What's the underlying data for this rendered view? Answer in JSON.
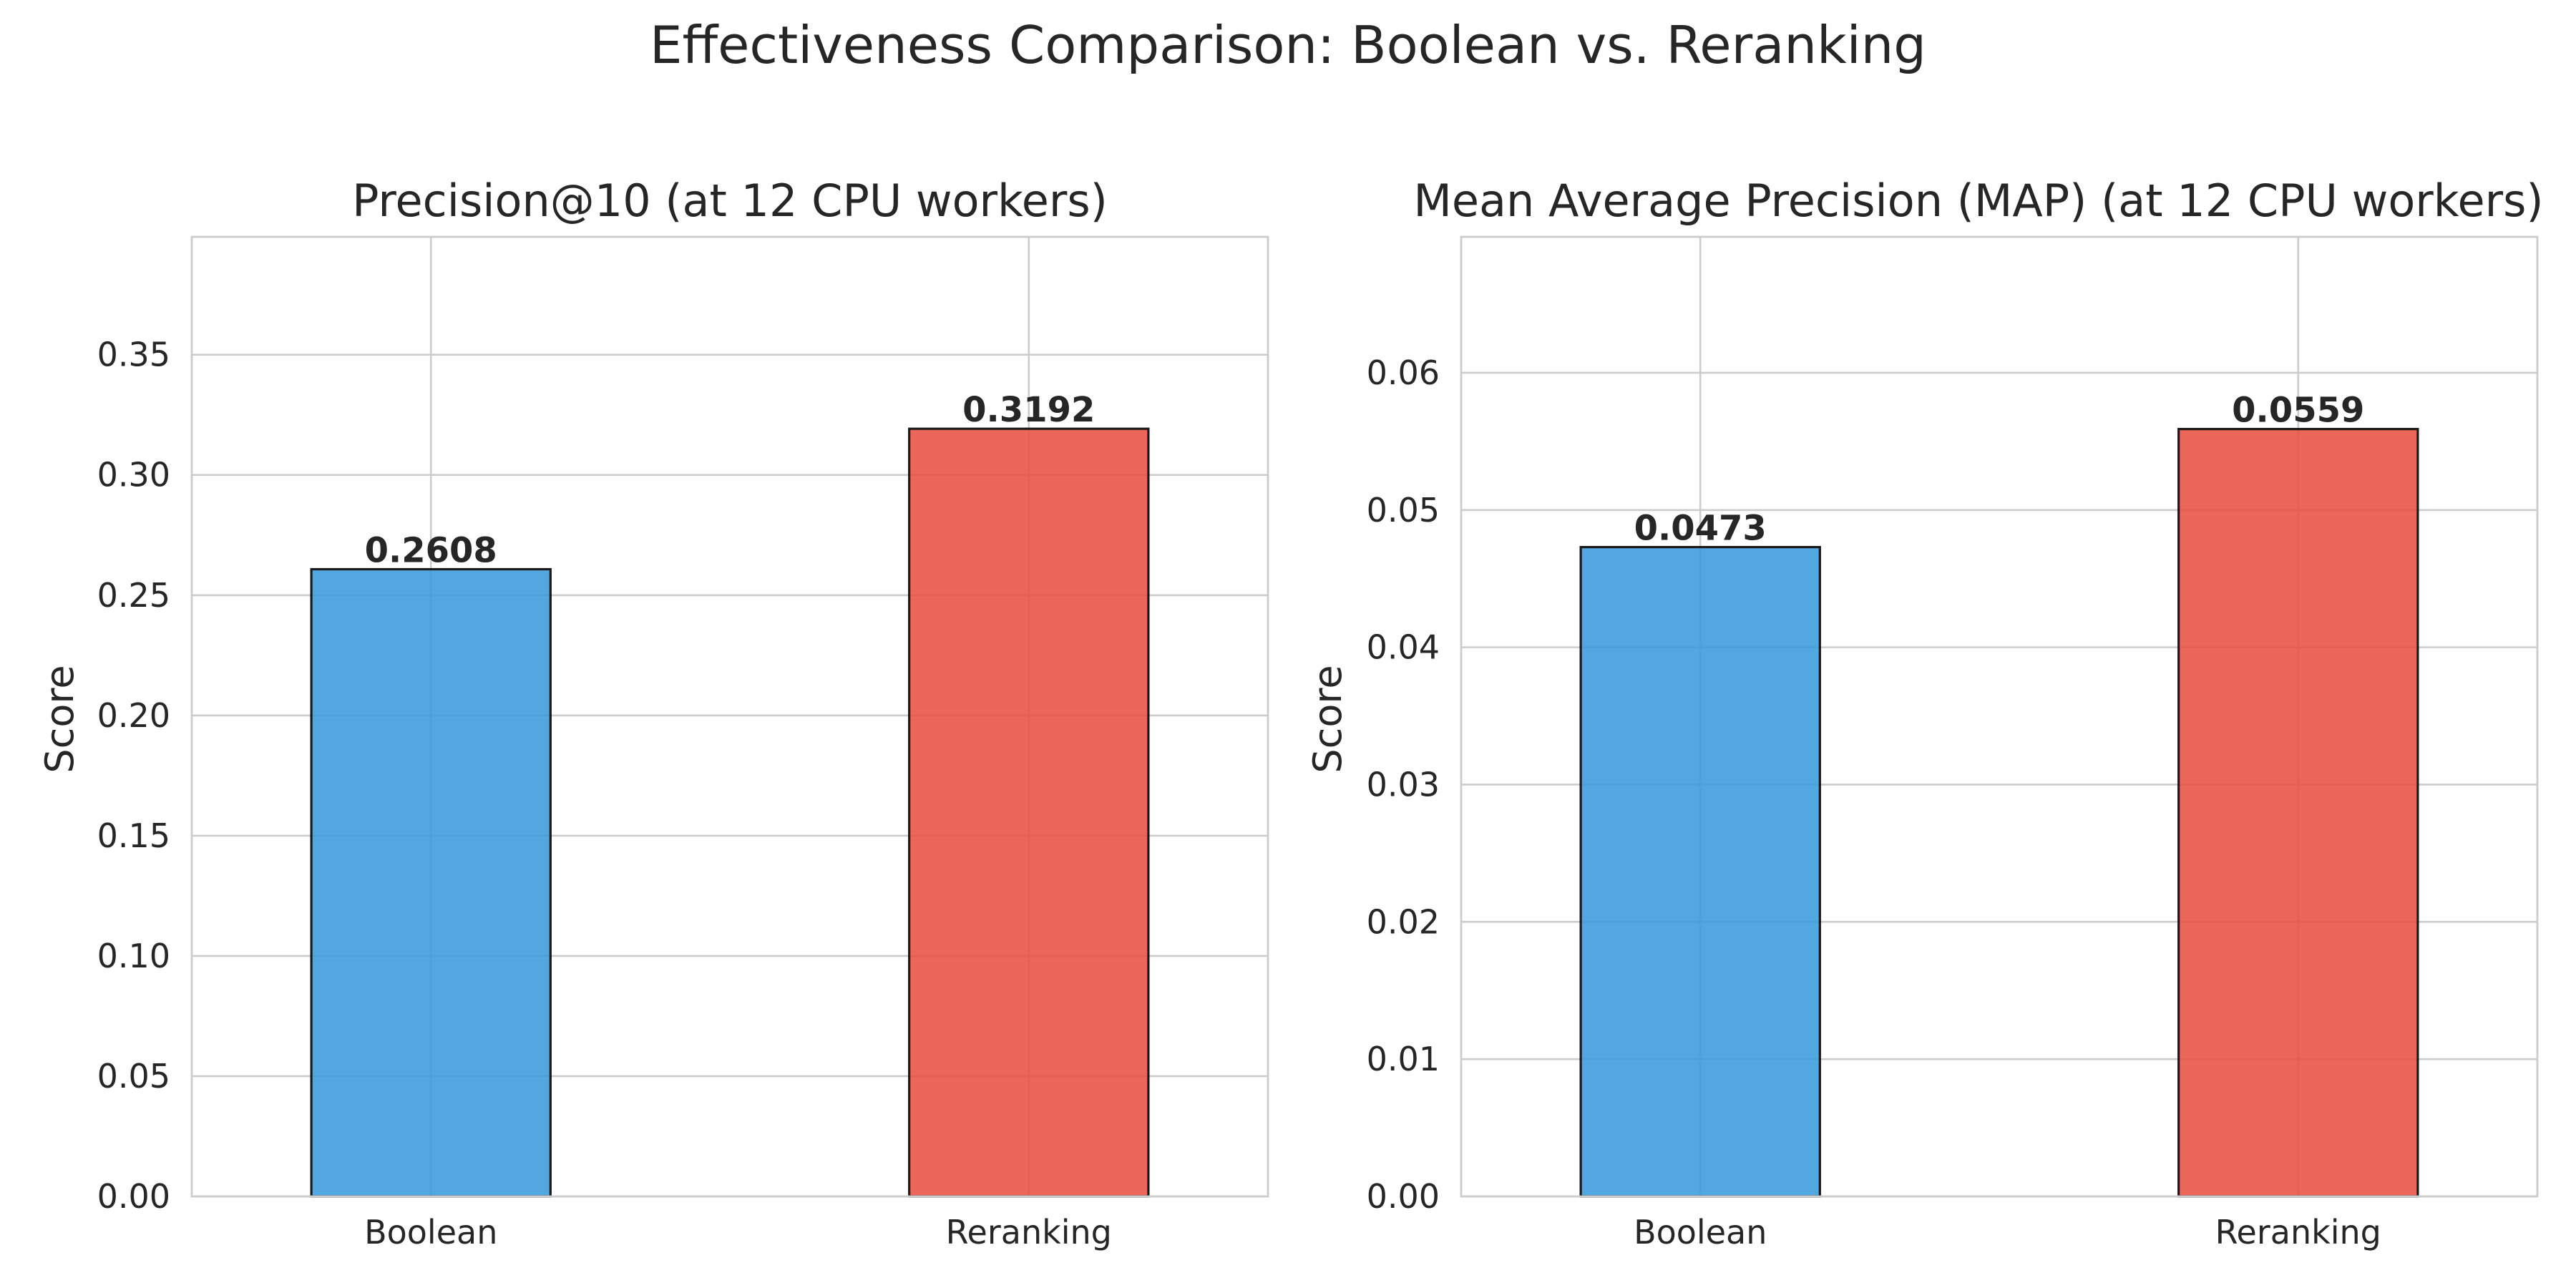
{
  "figure": {
    "suptitle": "Effectiveness Comparison: Boolean vs. Reranking"
  },
  "chart_data": [
    {
      "type": "bar",
      "title": "Precision@10 (at 12 CPU workers)",
      "xlabel": "",
      "ylabel": "Score",
      "categories": [
        "Boolean",
        "Reranking"
      ],
      "values": [
        0.2608,
        0.3192
      ],
      "value_labels": [
        "0.2608",
        "0.3192"
      ],
      "colors": [
        "#3498db",
        "#e74c3c"
      ],
      "ylim": [
        0,
        0.399
      ],
      "yticks": [
        0.0,
        0.05,
        0.1,
        0.15,
        0.2,
        0.25,
        0.3,
        0.35
      ],
      "ytick_labels": [
        "0.00",
        "0.05",
        "0.10",
        "0.15",
        "0.20",
        "0.25",
        "0.30",
        "0.35"
      ],
      "grid": true,
      "legend": "none"
    },
    {
      "type": "bar",
      "title": "Mean Average Precision (MAP) (at 12 CPU workers)",
      "xlabel": "",
      "ylabel": "Score",
      "categories": [
        "Boolean",
        "Reranking"
      ],
      "values": [
        0.0473,
        0.0559
      ],
      "value_labels": [
        "0.0473",
        "0.0559"
      ],
      "colors": [
        "#3498db",
        "#e74c3c"
      ],
      "ylim": [
        0,
        0.0699
      ],
      "yticks": [
        0.0,
        0.01,
        0.02,
        0.03,
        0.04,
        0.05,
        0.06
      ],
      "ytick_labels": [
        "0.00",
        "0.01",
        "0.02",
        "0.03",
        "0.04",
        "0.05",
        "0.06"
      ],
      "grid": true,
      "legend": "none"
    }
  ]
}
